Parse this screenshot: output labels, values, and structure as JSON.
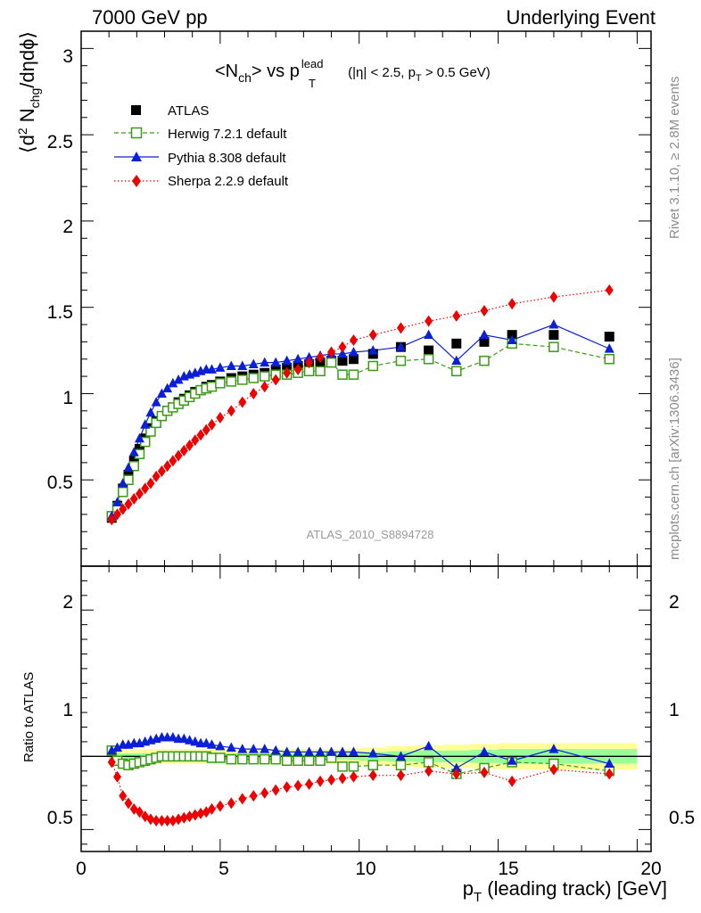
{
  "header": {
    "left": "7000 GeV pp",
    "right": "Underlying Event"
  },
  "plot_title": {
    "part1": "<N",
    "sub1": "ch",
    "part2": "> vs p",
    "sup2": "lead",
    "sub2": "T",
    "part3": " (|η| < 2.5, p",
    "sub3": "T",
    "part4": " > 0.5 GeV)"
  },
  "ylabel_main": {
    "p1": "⟨d",
    "sup1": "2",
    "p2": " N",
    "sub2": "chg",
    "p3": "/dηdϕ⟩"
  },
  "ylabel_ratio": "Ratio to ATLAS",
  "xlabel": {
    "p1": "p",
    "sub1": "T",
    "p2": " (leading track) [GeV]"
  },
  "side_text": {
    "rivet": "Rivet 3.1.10, ≥ 2.8M events",
    "mcplots": "mcplots.cern.ch [arXiv:1306.3436]"
  },
  "watermark": "ATLAS_2010_S8894728",
  "colors": {
    "atlas": "#000000",
    "herwig": "#3a9a16",
    "pythia": "#0a1fd6",
    "sherpa": "#ee0000",
    "band_yellow": "#ffff99",
    "band_green": "#99ff99"
  },
  "chart_data": {
    "type": "scatter",
    "x": [
      1.1,
      1.3,
      1.5,
      1.7,
      1.9,
      2.1,
      2.3,
      2.5,
      2.7,
      2.9,
      3.1,
      3.3,
      3.5,
      3.7,
      3.9,
      4.1,
      4.3,
      4.5,
      4.7,
      5.0,
      5.4,
      5.8,
      6.2,
      6.6,
      7.0,
      7.4,
      7.8,
      8.2,
      8.6,
      9.0,
      9.4,
      9.8,
      10.5,
      11.5,
      12.5,
      13.5,
      14.5,
      15.5,
      17.0,
      19.0
    ],
    "xlim": [
      0,
      20.5
    ],
    "xticks": [
      "0",
      "5",
      "10",
      "15",
      "20"
    ],
    "main_panel": {
      "ylim": [
        0,
        3.1
      ],
      "yticks": [
        "0.5",
        "1",
        "1.5",
        "2",
        "2.5",
        "3"
      ],
      "series": [
        {
          "name": "ATLAS",
          "marker": "square",
          "values": [
            0.28,
            0.35,
            0.45,
            0.53,
            0.61,
            0.68,
            0.74,
            0.8,
            0.84,
            0.87,
            0.9,
            0.92,
            0.95,
            0.97,
            0.99,
            1.01,
            1.02,
            1.04,
            1.05,
            1.07,
            1.09,
            1.1,
            1.11,
            1.12,
            1.14,
            1.15,
            1.16,
            1.17,
            1.18,
            1.19,
            1.19,
            1.2,
            1.23,
            1.27,
            1.25,
            1.29,
            1.3,
            1.34,
            1.34,
            1.33
          ]
        },
        {
          "name": "Herwig 7.2.1 default",
          "marker": "open-square",
          "line": "dashed",
          "values": [
            0.29,
            0.34,
            0.43,
            0.5,
            0.58,
            0.65,
            0.72,
            0.78,
            0.83,
            0.87,
            0.9,
            0.92,
            0.94,
            0.96,
            0.98,
            1.0,
            1.02,
            1.03,
            1.04,
            1.06,
            1.07,
            1.08,
            1.09,
            1.1,
            1.11,
            1.11,
            1.12,
            1.13,
            1.13,
            1.18,
            1.11,
            1.11,
            1.16,
            1.19,
            1.2,
            1.13,
            1.19,
            1.29,
            1.27,
            1.2
          ]
        },
        {
          "name": "Pythia 8.308 default",
          "marker": "triangle",
          "line": "solid",
          "values": [
            0.29,
            0.37,
            0.48,
            0.57,
            0.66,
            0.74,
            0.82,
            0.89,
            0.95,
            1.0,
            1.03,
            1.06,
            1.08,
            1.1,
            1.11,
            1.12,
            1.13,
            1.14,
            1.14,
            1.15,
            1.16,
            1.16,
            1.17,
            1.18,
            1.18,
            1.19,
            1.2,
            1.21,
            1.22,
            1.23,
            1.23,
            1.24,
            1.25,
            1.27,
            1.34,
            1.19,
            1.34,
            1.31,
            1.4,
            1.26
          ]
        },
        {
          "name": "Sherpa 2.2.9 default",
          "marker": "diamond",
          "line": "dotted",
          "values": [
            0.27,
            0.3,
            0.33,
            0.36,
            0.39,
            0.42,
            0.45,
            0.48,
            0.52,
            0.55,
            0.58,
            0.61,
            0.64,
            0.67,
            0.7,
            0.73,
            0.76,
            0.79,
            0.82,
            0.86,
            0.9,
            0.95,
            1.0,
            1.04,
            1.08,
            1.12,
            1.14,
            1.18,
            1.21,
            1.24,
            1.27,
            1.31,
            1.34,
            1.38,
            1.42,
            1.45,
            1.48,
            1.52,
            1.56,
            1.6
          ]
        }
      ]
    },
    "ratio_panel": {
      "ylim": [
        0.35,
        2.3
      ],
      "yticks": [
        "0.5",
        "1",
        "2"
      ],
      "reference_line": 1,
      "series": [
        {
          "name": "Herwig 7.2.1 default",
          "values": [
            1.04,
            0.97,
            0.95,
            0.94,
            0.95,
            0.96,
            0.97,
            0.98,
            0.99,
            1.0,
            1.0,
            1.0,
            1.0,
            1.0,
            1.0,
            1.0,
            1.0,
            1.0,
            0.99,
            0.99,
            0.98,
            0.98,
            0.98,
            0.98,
            0.98,
            0.97,
            0.97,
            0.97,
            0.97,
            0.99,
            0.93,
            0.93,
            0.94,
            0.94,
            0.96,
            0.88,
            0.92,
            0.96,
            0.95,
            0.9
          ]
        },
        {
          "name": "Pythia 8.308 default",
          "values": [
            1.04,
            1.06,
            1.08,
            1.08,
            1.09,
            1.09,
            1.1,
            1.11,
            1.12,
            1.13,
            1.13,
            1.13,
            1.12,
            1.12,
            1.11,
            1.1,
            1.09,
            1.09,
            1.08,
            1.07,
            1.06,
            1.05,
            1.05,
            1.05,
            1.04,
            1.03,
            1.03,
            1.03,
            1.03,
            1.03,
            1.03,
            1.03,
            1.02,
            1.0,
            1.07,
            0.92,
            1.03,
            0.97,
            1.05,
            0.95
          ]
        },
        {
          "name": "Sherpa 2.2.9 default",
          "values": [
            0.96,
            0.86,
            0.73,
            0.68,
            0.64,
            0.62,
            0.59,
            0.57,
            0.56,
            0.56,
            0.56,
            0.56,
            0.57,
            0.58,
            0.59,
            0.6,
            0.61,
            0.62,
            0.64,
            0.66,
            0.68,
            0.71,
            0.73,
            0.75,
            0.77,
            0.79,
            0.8,
            0.81,
            0.83,
            0.84,
            0.85,
            0.86,
            0.87,
            0.87,
            0.9,
            0.88,
            0.89,
            0.83,
            0.91,
            0.88
          ]
        }
      ],
      "band": {
        "x_edges": [
          1.0,
          1.2,
          1.4,
          1.6,
          1.8,
          2.0,
          2.2,
          2.4,
          2.6,
          2.8,
          3.0,
          3.2,
          3.4,
          3.6,
          3.8,
          4.0,
          4.2,
          4.4,
          4.6,
          4.8,
          5.2,
          5.6,
          6.0,
          6.4,
          6.8,
          7.2,
          7.6,
          8.0,
          8.4,
          8.8,
          9.2,
          9.6,
          10.0,
          11.0,
          12.0,
          13.0,
          14.0,
          15.0,
          16.0,
          18.0,
          20.0
        ],
        "green_halfwidth": [
          0.03,
          0.025,
          0.02,
          0.02,
          0.02,
          0.02,
          0.02,
          0.02,
          0.02,
          0.02,
          0.02,
          0.02,
          0.02,
          0.02,
          0.02,
          0.02,
          0.02,
          0.02,
          0.02,
          0.02,
          0.02,
          0.02,
          0.02,
          0.02,
          0.02,
          0.02,
          0.02,
          0.02,
          0.02,
          0.02,
          0.02,
          0.025,
          0.03,
          0.035,
          0.04,
          0.04,
          0.045,
          0.05,
          0.05,
          0.05
        ],
        "yellow_halfwidth": [
          0.06,
          0.055,
          0.05,
          0.05,
          0.05,
          0.05,
          0.05,
          0.05,
          0.05,
          0.05,
          0.05,
          0.05,
          0.05,
          0.05,
          0.05,
          0.05,
          0.05,
          0.05,
          0.05,
          0.05,
          0.05,
          0.05,
          0.05,
          0.05,
          0.05,
          0.05,
          0.05,
          0.05,
          0.05,
          0.05,
          0.05,
          0.055,
          0.06,
          0.07,
          0.075,
          0.08,
          0.085,
          0.09,
          0.09,
          0.09
        ]
      }
    }
  }
}
